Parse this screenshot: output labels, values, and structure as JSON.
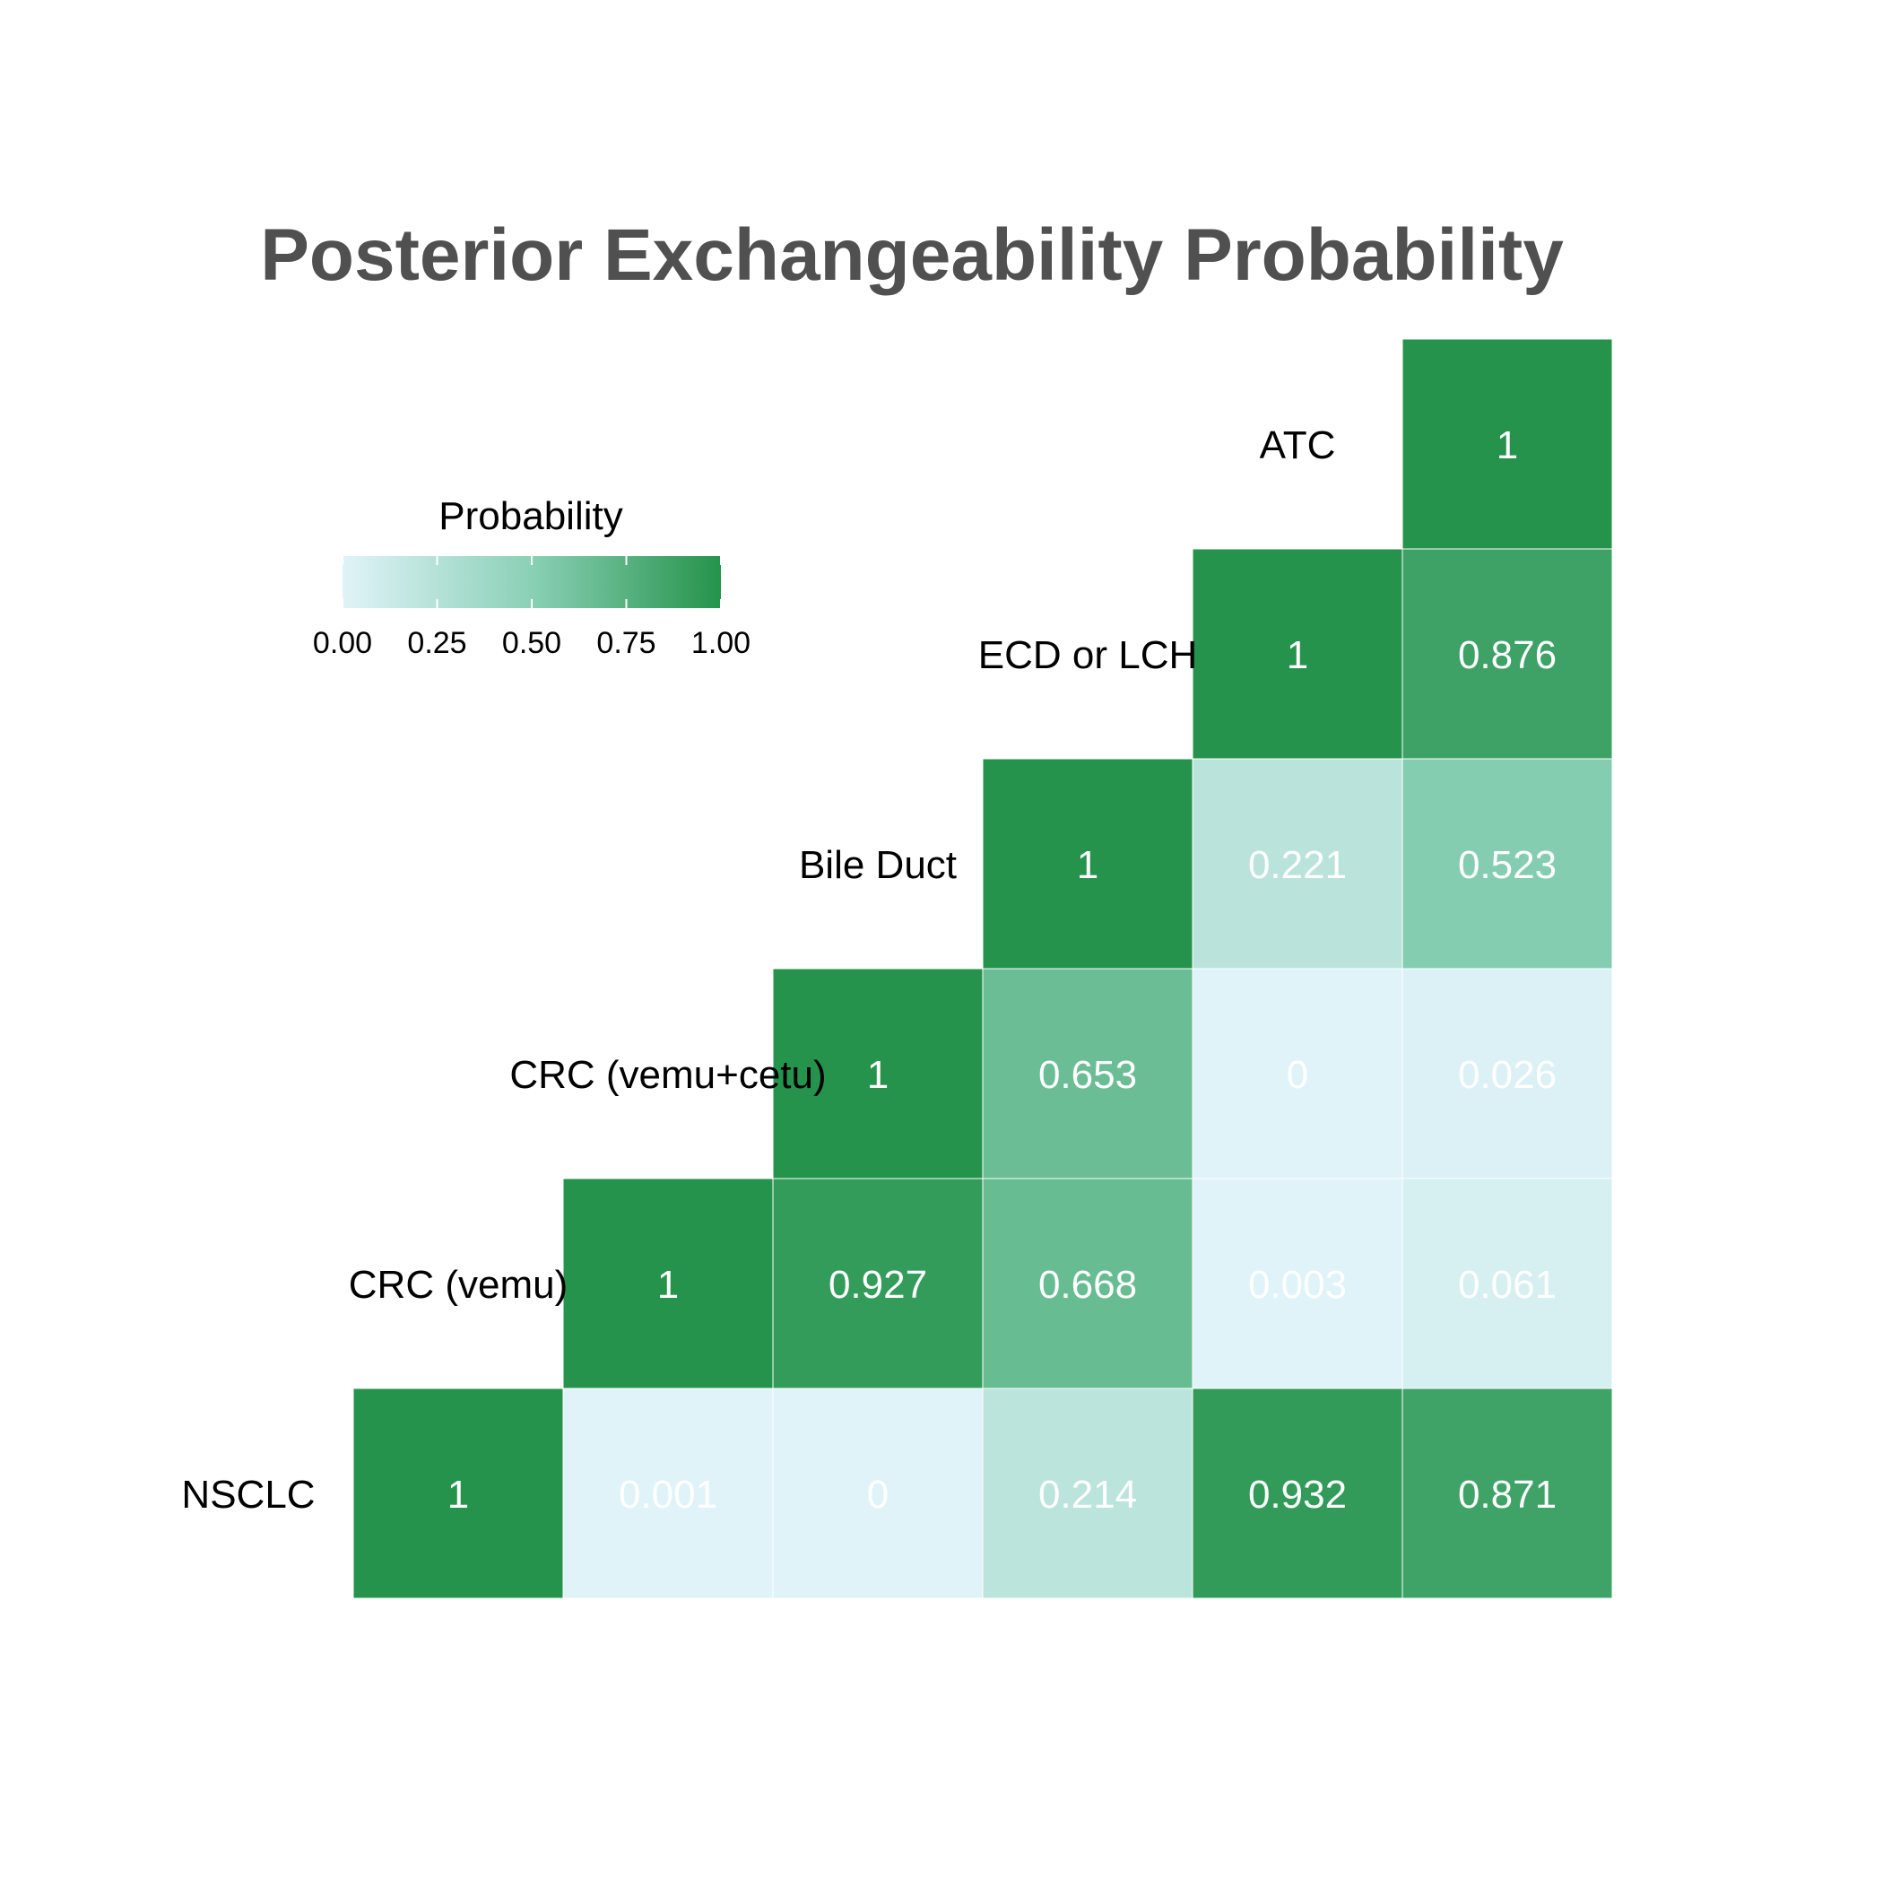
{
  "chart_data": {
    "type": "heatmap",
    "title": "Posterior Exchangeability Probability",
    "categories": [
      "NSCLC",
      "CRC (vemu)",
      "CRC (vemu+cetu)",
      "Bile Duct",
      "ECD or LCH",
      "ATC"
    ],
    "values": [
      [
        1,
        0.001,
        0,
        0.214,
        0.932,
        0.871
      ],
      [
        null,
        1,
        0.927,
        0.668,
        0.003,
        0.061
      ],
      [
        null,
        null,
        1,
        0.653,
        0,
        0.026
      ],
      [
        null,
        null,
        null,
        1,
        0.221,
        0.523
      ],
      [
        null,
        null,
        null,
        null,
        1,
        0.876
      ],
      [
        null,
        null,
        null,
        null,
        null,
        1
      ]
    ],
    "cell_labels": [
      [
        "1",
        "0.001",
        "0",
        "0.214",
        "0.932",
        "0.871"
      ],
      [
        "",
        "1",
        "0.927",
        "0.668",
        "0.003",
        "0.061"
      ],
      [
        "",
        "",
        "1",
        "0.653",
        "0",
        "0.026"
      ],
      [
        "",
        "",
        "",
        "1",
        "0.221",
        "0.523"
      ],
      [
        "",
        "",
        "",
        "",
        "1",
        "0.876"
      ],
      [
        "",
        "",
        "",
        "",
        "",
        "1"
      ]
    ],
    "legend": {
      "title": "Probability",
      "range": [
        0,
        1
      ],
      "ticks": [
        "0.00",
        "0.25",
        "0.50",
        "0.75",
        "1.00"
      ],
      "tick_values": [
        0,
        0.25,
        0.5,
        0.75,
        1
      ],
      "placement": "top-left"
    },
    "colors": {
      "low": "#e0f3f8",
      "mid": "#8ad0b6",
      "high": "#25934b",
      "title": "#505050",
      "label": "#000000",
      "cell_text": "#ffffff",
      "grid": "#ffffff"
    }
  }
}
